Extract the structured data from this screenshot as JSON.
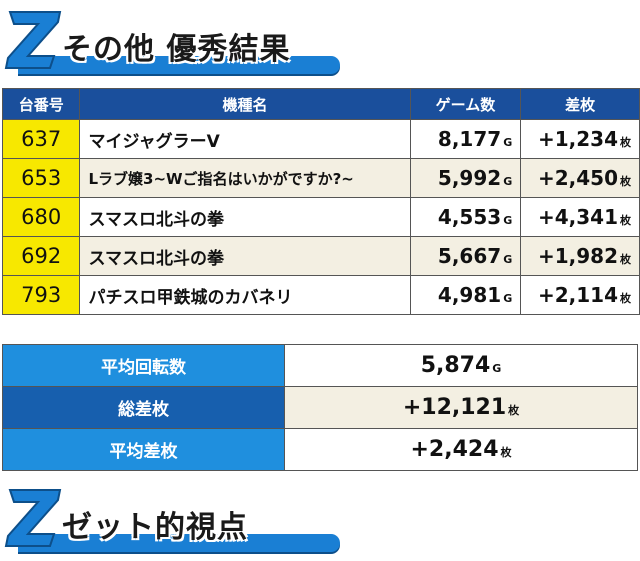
{
  "headers": {
    "section1": "その他 優秀結果",
    "section2": "ゼット的視点",
    "z_letter": "Z"
  },
  "colors": {
    "accent_blue": "#1a7fd4",
    "table_header": "#1a4f9c",
    "number_cell": "#f7e800",
    "alt_row": "#f3efe2"
  },
  "table": {
    "columns": [
      "台番号",
      "機種名",
      "ゲーム数",
      "差枚"
    ],
    "rows": [
      {
        "no": "637",
        "name": "マイジャグラーV",
        "games": "8,177",
        "games_unit": "G",
        "diff": "+1,234",
        "diff_unit": "枚"
      },
      {
        "no": "653",
        "name": "Lラブ嬢3~Wご指名はいかがですか?~",
        "games": "5,992",
        "games_unit": "G",
        "diff": "+2,450",
        "diff_unit": "枚"
      },
      {
        "no": "680",
        "name": "スマスロ北斗の拳",
        "games": "4,553",
        "games_unit": "G",
        "diff": "+4,341",
        "diff_unit": "枚"
      },
      {
        "no": "692",
        "name": "スマスロ北斗の拳",
        "games": "5,667",
        "games_unit": "G",
        "diff": "+1,982",
        "diff_unit": "枚"
      },
      {
        "no": "793",
        "name": "パチスロ甲鉄城のカバネリ",
        "games": "4,981",
        "games_unit": "G",
        "diff": "+2,114",
        "diff_unit": "枚"
      }
    ]
  },
  "summary": [
    {
      "label": "平均回転数",
      "value": "5,874",
      "unit": "G"
    },
    {
      "label": "総差枚",
      "value": "+12,121",
      "unit": "枚"
    },
    {
      "label": "平均差枚",
      "value": "+2,424",
      "unit": "枚"
    }
  ]
}
